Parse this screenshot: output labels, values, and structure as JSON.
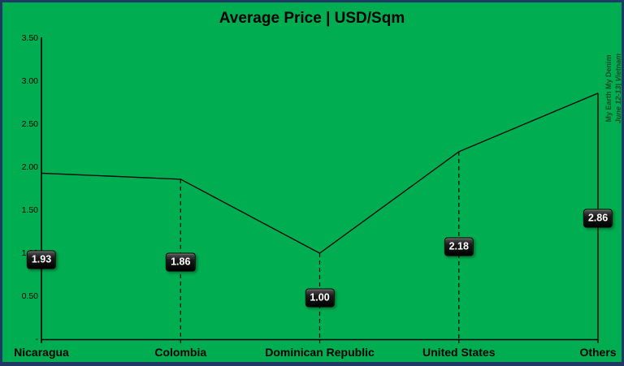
{
  "title": "Average Price | USD/Sqm",
  "watermark": {
    "line1": "My Earth My Denim",
    "line2": "June 12-13| Vietnam"
  },
  "colors": {
    "background": "#00AD50",
    "border": "#1F3864",
    "series_line": "#000000",
    "axis_line": "#000000",
    "data_label_box": "#000000",
    "data_label_text": "#FFFFFF",
    "watermark_text": "#134D28"
  },
  "chart_data": {
    "type": "line",
    "title": "Average Price | USD/Sqm",
    "categories": [
      "Nicaragua",
      "Colombia",
      "Dominican Republic",
      "United States",
      "Others"
    ],
    "values": [
      1.93,
      1.86,
      1.0,
      2.18,
      2.86
    ],
    "data_labels": [
      "1.93",
      "1.86",
      "1.00",
      "2.18",
      "2.86"
    ],
    "xlabel": "",
    "ylabel": "",
    "ylim": [
      0,
      3.5
    ],
    "y_tick_labels": [
      "3.50",
      "3.00",
      "2.50",
      "2.00",
      "1.50",
      "1.00",
      "0.50",
      "-"
    ],
    "y_tick_values": [
      3.5,
      3.0,
      2.5,
      2.0,
      1.5,
      1.0,
      0.5,
      0
    ],
    "grid": false,
    "legend": "none",
    "drop_lines": "dashed",
    "annotations": [
      "My Earth My Denim",
      "June 12-13| Vietnam"
    ]
  }
}
